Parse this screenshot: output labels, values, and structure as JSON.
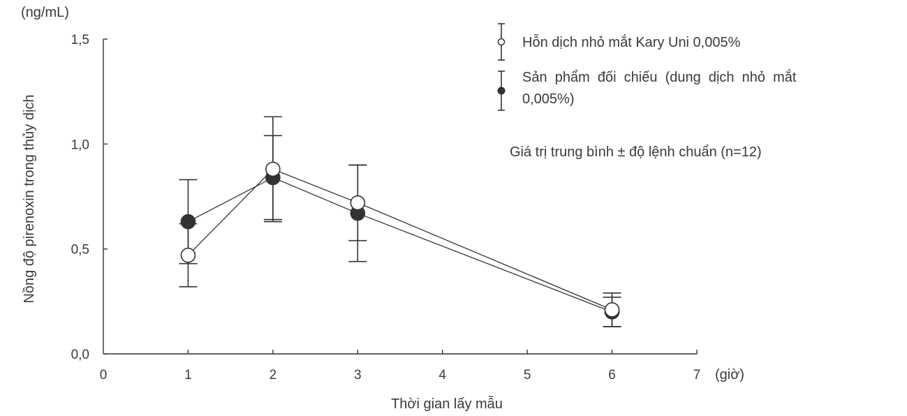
{
  "chart_data": {
    "type": "line",
    "title": "",
    "xlabel": "Thời gian lấy mẫu",
    "xunit": "(giờ)",
    "ylabel": "Nồng độ pirenoxin trong thủy dịch",
    "yunit": "(ng/mL)",
    "xlim": [
      0,
      7
    ],
    "ylim": [
      0,
      1.5
    ],
    "x_ticks": [
      "0",
      "1",
      "2",
      "3",
      "4",
      "5",
      "6",
      "7"
    ],
    "y_ticks": [
      "0,0",
      "0,5",
      "1,0",
      "1,5"
    ],
    "grid": false,
    "legend_position": "top-right",
    "series": [
      {
        "name": "Hỗn dịch nhỏ mắt Kary Uni 0,005%",
        "marker": "open-circle",
        "x": [
          1,
          2,
          3,
          6
        ],
        "y": [
          0.47,
          0.88,
          0.72,
          0.21
        ],
        "error": [
          0.15,
          0.25,
          0.18,
          0.08
        ]
      },
      {
        "name": "Sản phẩm đối chiếu (dung dịch nhỏ mắt 0,005%)",
        "marker": "filled-circle",
        "x": [
          1,
          2,
          3,
          6
        ],
        "y": [
          0.63,
          0.84,
          0.67,
          0.2
        ],
        "error": [
          0.2,
          0.2,
          0.23,
          0.07
        ]
      }
    ],
    "annotations": [
      "Giá trị trung bình ± độ lệnh chuẩn (n=12)"
    ]
  },
  "legend": {
    "item1_label": "Hỗn dịch nhỏ mắt Kary Uni 0,005%",
    "item2_line1": "Sản  phẩm  đối  chiếu  (dung  dịch  nhỏ  mắt",
    "item2_line2": "0,005%)"
  },
  "note": "Giá trị trung bình ± độ lệnh chuẩn (n=12)",
  "colors": {
    "ink": "#333333",
    "open_marker_fill": "#ffffff",
    "filled_marker_fill": "#333333"
  }
}
